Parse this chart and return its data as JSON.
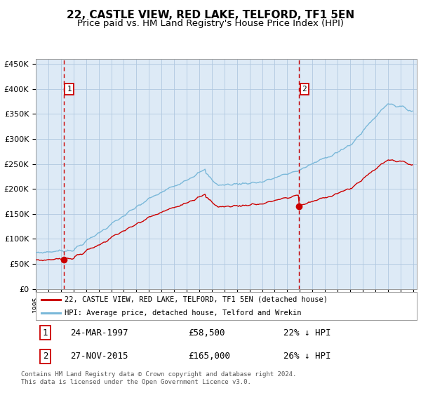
{
  "title": "22, CASTLE VIEW, RED LAKE, TELFORD, TF1 5EN",
  "subtitle": "Price paid vs. HM Land Registry's House Price Index (HPI)",
  "legend_line1": "22, CASTLE VIEW, RED LAKE, TELFORD, TF1 5EN (detached house)",
  "legend_line2": "HPI: Average price, detached house, Telford and Wrekin",
  "sale1_date": "24-MAR-1997",
  "sale1_price": 58500,
  "sale1_label": "22% ↓ HPI",
  "sale2_date": "27-NOV-2015",
  "sale2_price": 165000,
  "sale2_label": "26% ↓ HPI",
  "footnote": "Contains HM Land Registry data © Crown copyright and database right 2024.\nThis data is licensed under the Open Government Licence v3.0.",
  "ylim": [
    0,
    460000
  ],
  "yticks": [
    0,
    50000,
    100000,
    150000,
    200000,
    250000,
    300000,
    350000,
    400000,
    450000
  ],
  "hpi_color": "#7ab8d9",
  "price_color": "#cc0000",
  "vline_color": "#cc0000",
  "plot_bg": "#ddeaf6",
  "grid_color": "#b0c8e0",
  "title_fontsize": 11,
  "subtitle_fontsize": 9.5,
  "sale1_year": 1997.22,
  "sale2_year": 2015.92
}
